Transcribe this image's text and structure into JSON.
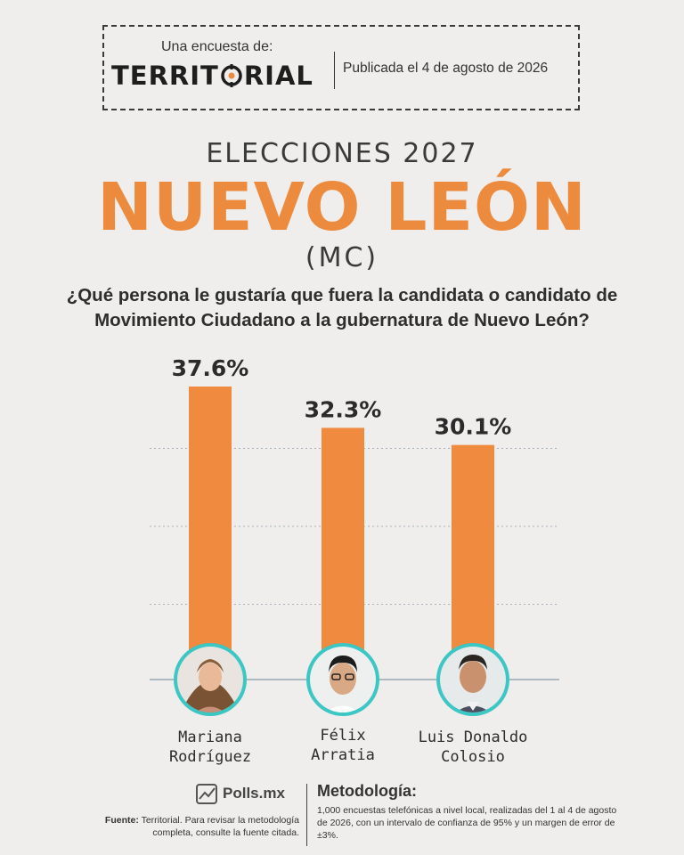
{
  "header": {
    "sub": "Una encuesta de:",
    "brand_left": "TERRIT",
    "brand_right": "RIAL",
    "pub_date": "Publicada el 4 de agosto de 2026"
  },
  "titles": {
    "super": "ELECCIONES 2027",
    "main": "NUEVO LEÓN",
    "party": "(MC)",
    "question": "¿Qué persona le gustaría que fuera la candidata o candidato de Movimiento Ciudadano a la gubernatura de Nuevo León?"
  },
  "colors": {
    "bar": "#ef8a3f",
    "avatar_ring": "#3cc6c4",
    "accent": "#ec8a3e"
  },
  "chart_data": {
    "type": "bar",
    "categories": [
      "Mariana Rodríguez",
      "Félix Arratia",
      "Luis Donaldo Colosio"
    ],
    "values": [
      37.6,
      32.3,
      30.1
    ],
    "value_labels": [
      "37.6%",
      "32.3%",
      "30.1%"
    ],
    "ylim": [
      0,
      40
    ],
    "grid": true
  },
  "candidates": [
    {
      "line1": "Mariana",
      "line2": "Rodríguez"
    },
    {
      "line1": "Félix",
      "line2": "Arratia"
    },
    {
      "line1": "Luis Donaldo",
      "line2": "Colosio"
    }
  ],
  "footer": {
    "logo": "Polls.mx",
    "source_label": "Fuente:",
    "source_text": "Territorial. Para revisar la metodología completa, consulte la fuente citada.",
    "method_title": "Metodología:",
    "method_text": "1,000 encuestas telefónicas a nivel local, realizadas del 1 al 4 de agosto de 2026, con un intervalo de confianza de 95% y un margen de error de ±3%."
  }
}
